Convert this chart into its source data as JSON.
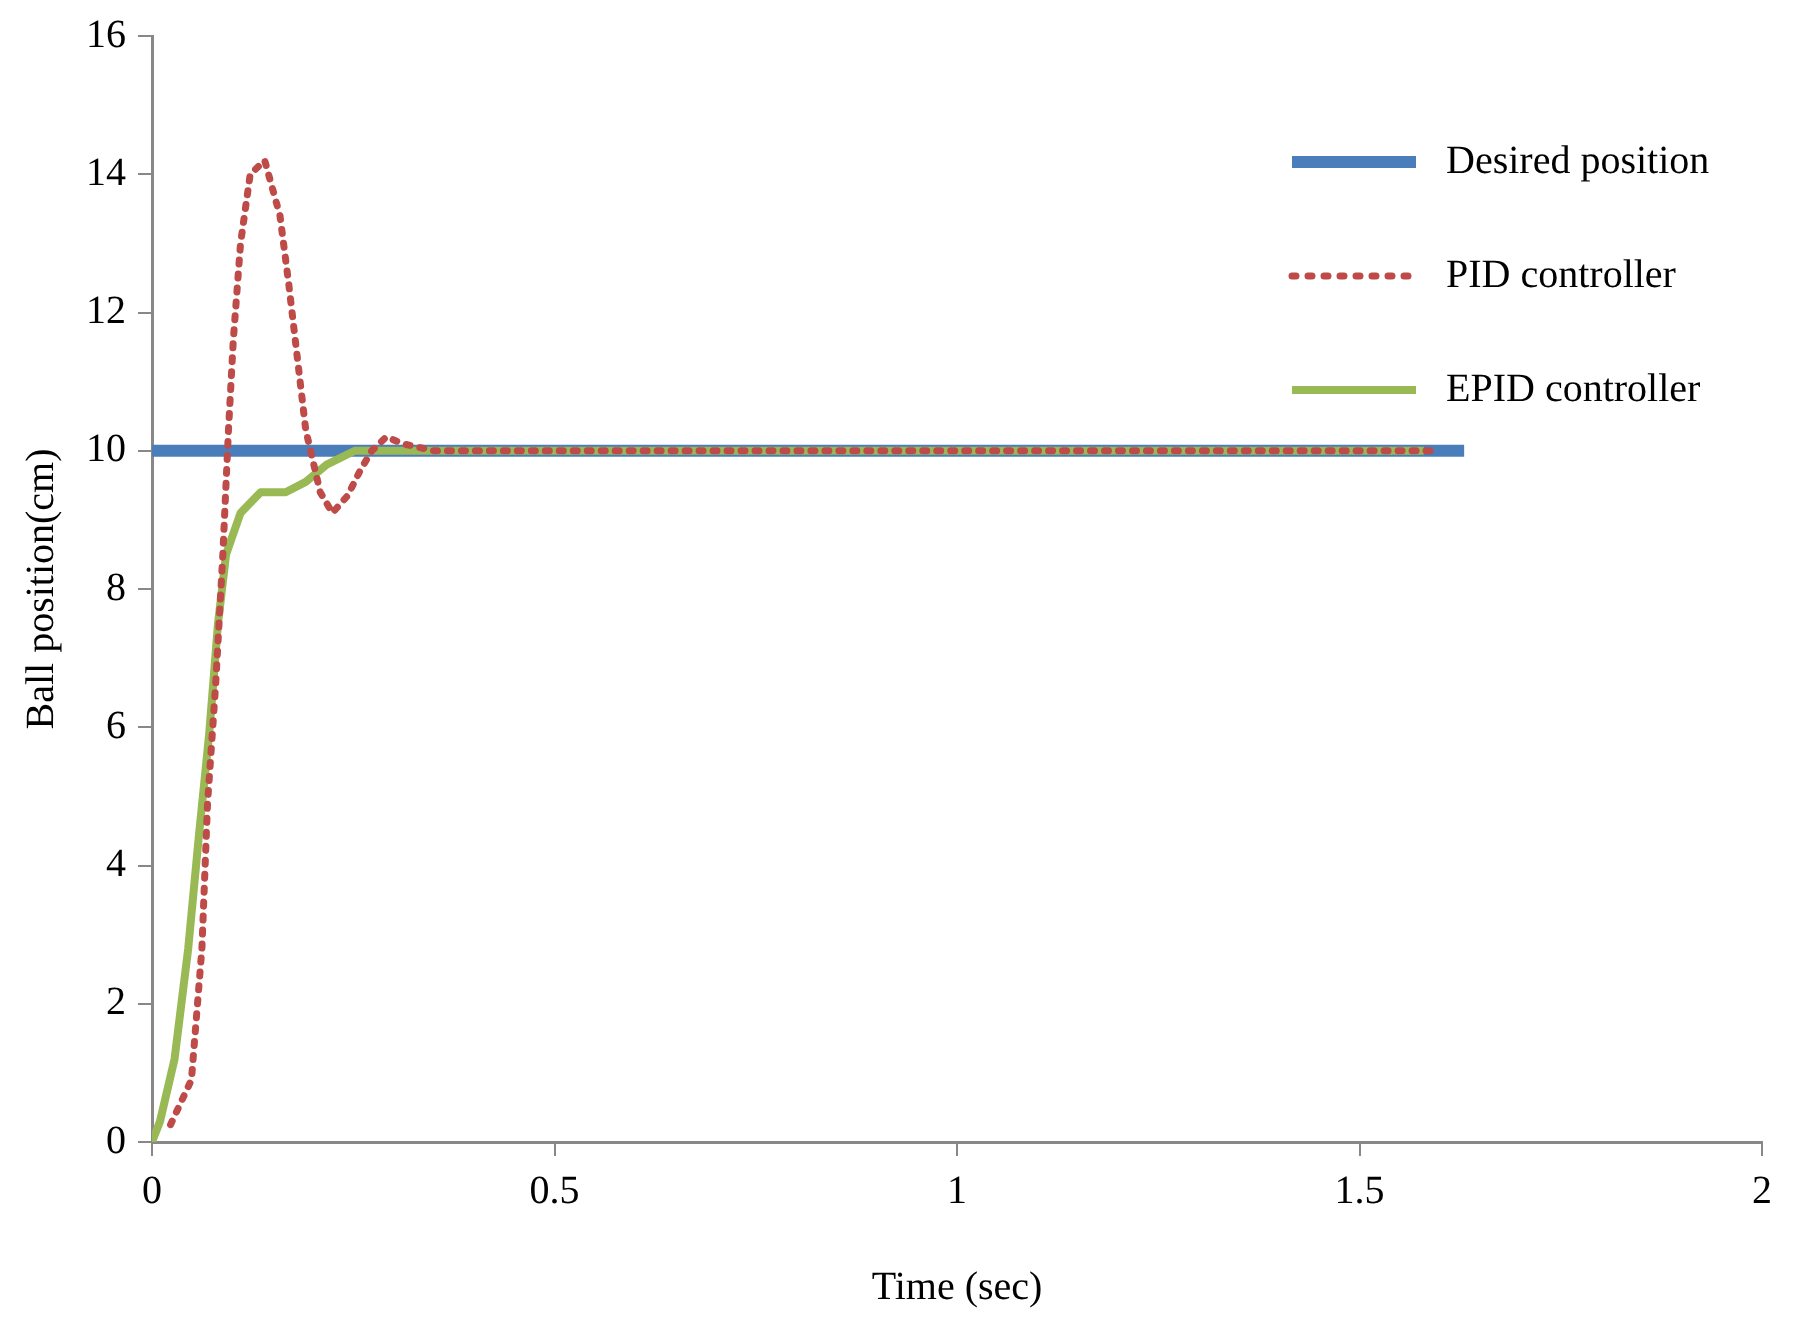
{
  "chart_data": {
    "type": "line",
    "xlabel": "Time (sec)",
    "ylabel": "Ball position(cm)",
    "xlim": [
      0,
      2
    ],
    "xticks": [
      0,
      0.5,
      1,
      1.5,
      2
    ],
    "ylim": [
      0,
      16
    ],
    "yticks": [
      0,
      2,
      4,
      6,
      8,
      10,
      12,
      14,
      16
    ],
    "grid": false,
    "legend": "top right",
    "marker": "none",
    "series": [
      {
        "name": "Desired position",
        "color": "#4a7ebb",
        "line_style": "solid",
        "x": [
          0,
          1.63
        ],
        "values": [
          10,
          10
        ]
      },
      {
        "name": "PID controller",
        "color": "#be4b48",
        "line_style": "dotted",
        "x": [
          0.023,
          0.049,
          0.062,
          0.069,
          0.079,
          0.088,
          0.095,
          0.101,
          0.11,
          0.122,
          0.14,
          0.159,
          0.17,
          0.181,
          0.191,
          0.209,
          0.224,
          0.243,
          0.258,
          0.273,
          0.291,
          0.312,
          0.35,
          1.6
        ],
        "values": [
          0.25,
          0.9,
          2.8,
          4.9,
          6.6,
          8.5,
          10.3,
          11.6,
          13,
          14,
          14.2,
          13.4,
          12.4,
          11.3,
          10.3,
          9.4,
          9.1,
          9.35,
          9.7,
          10,
          10.2,
          10.1,
          10,
          10
        ]
      },
      {
        "name": "EPID controller",
        "color": "#98b954",
        "line_style": "solid",
        "x": [
          0,
          0.01,
          0.028,
          0.045,
          0.058,
          0.071,
          0.082,
          0.092,
          0.11,
          0.135,
          0.166,
          0.191,
          0.217,
          0.252,
          0.3,
          1.58
        ],
        "values": [
          0,
          0.3,
          1.2,
          2.8,
          4.4,
          5.9,
          7.5,
          8.5,
          9.1,
          9.4,
          9.4,
          9.55,
          9.8,
          10,
          10,
          10
        ]
      }
    ]
  }
}
